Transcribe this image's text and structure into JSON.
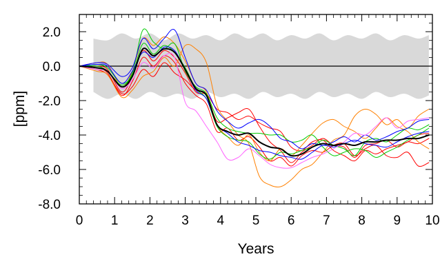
{
  "chart_data": {
    "type": "line",
    "title": "",
    "xlabel": "Years",
    "ylabel": "[ppm]",
    "xlim": [
      0,
      10
    ],
    "ylim": [
      -8.0,
      3.0
    ],
    "xticks": [
      0,
      1,
      2,
      3,
      4,
      5,
      6,
      7,
      8,
      9,
      10
    ],
    "xtick_labels": [
      "0",
      "1",
      "2",
      "3",
      "4",
      "5",
      "6",
      "7",
      "8",
      "9",
      "10"
    ],
    "yticks": [
      2.0,
      0.0,
      -2.0,
      -4.0,
      -6.0,
      -8.0
    ],
    "ytick_labels": [
      "2.0",
      "0.0",
      "-2.0",
      "-4.0",
      "-6.0",
      "-8.0"
    ],
    "reference_line": 0.0,
    "band": {
      "color": "#d9d9d9",
      "x": [
        0.4,
        0.8,
        1.2,
        1.6,
        2.0,
        2.4,
        2.8,
        3.2,
        3.6,
        4.0,
        4.4,
        4.8,
        5.2,
        5.6,
        6.0,
        6.4,
        6.8,
        7.2,
        7.6,
        8.0,
        8.4,
        8.8,
        9.2,
        9.6,
        9.9
      ],
      "upper": [
        1.6,
        1.5,
        1.9,
        1.6,
        1.9,
        1.5,
        1.9,
        1.6,
        1.8,
        1.5,
        1.9,
        1.6,
        1.9,
        1.5,
        1.8,
        1.6,
        1.9,
        1.5,
        1.8,
        1.6,
        1.9,
        1.5,
        1.8,
        1.6,
        1.8
      ],
      "lower": [
        -1.5,
        -1.9,
        -1.6,
        -1.9,
        -1.5,
        -1.8,
        -1.6,
        -1.9,
        -1.5,
        -1.8,
        -1.6,
        -1.9,
        -1.5,
        -1.8,
        -1.6,
        -1.9,
        -1.5,
        -1.8,
        -1.6,
        -1.9,
        -1.5,
        -1.8,
        -1.6,
        -1.9,
        -1.7
      ]
    },
    "x": [
      0.0,
      0.5,
      0.8,
      1.2,
      1.5,
      1.8,
      2.1,
      2.4,
      2.7,
      3.0,
      3.3,
      3.6,
      3.9,
      4.2,
      4.5,
      4.8,
      5.1,
      5.4,
      5.7,
      6.0,
      6.3,
      6.6,
      6.9,
      7.2,
      7.5,
      7.8,
      8.1,
      8.4,
      8.7,
      9.0,
      9.3,
      9.6,
      9.9
    ],
    "series": [
      {
        "color": "#ff0000",
        "width": 1,
        "values": [
          0.0,
          -0.1,
          -0.4,
          -1.7,
          -0.9,
          0.5,
          0.0,
          0.6,
          0.2,
          -1.0,
          -1.7,
          -2.2,
          -3.8,
          -3.6,
          -4.3,
          -4.1,
          -4.7,
          -5.5,
          -5.3,
          -5.8,
          -5.2,
          -4.9,
          -5.0,
          -4.6,
          -4.5,
          -5.2,
          -4.8,
          -4.6,
          -5.2,
          -5.3,
          -5.0,
          -5.8,
          -5.6
        ]
      },
      {
        "color": "#ff0000",
        "width": 1,
        "values": [
          0.0,
          0.0,
          -0.2,
          -1.5,
          -0.6,
          0.9,
          0.3,
          0.9,
          0.5,
          -0.4,
          -1.5,
          -1.7,
          -3.2,
          -3.0,
          -2.7,
          -2.5,
          -3.5,
          -4.4,
          -4.9,
          -5.6,
          -5.0,
          -4.6,
          -4.2,
          -4.6,
          -4.7,
          -5.3,
          -4.6,
          -4.5,
          -4.3,
          -4.7,
          -4.4,
          -4.5,
          -4.2
        ]
      },
      {
        "color": "#ff0000",
        "width": 1,
        "values": [
          0.0,
          -0.2,
          -0.5,
          -1.6,
          -1.2,
          -0.2,
          -0.6,
          0.2,
          -0.4,
          -0.8,
          -1.4,
          -1.6,
          -2.5,
          -2.7,
          -3.1,
          -2.9,
          -3.3,
          -3.6,
          -3.8,
          -4.7,
          -4.9,
          -4.4,
          -4.3,
          -4.9,
          -5.2,
          -5.5,
          -4.9,
          -5.1,
          -4.8,
          -4.6,
          -4.4,
          -4.0,
          -3.9
        ]
      },
      {
        "color": "#ff8000",
        "width": 1,
        "values": [
          0.0,
          -0.3,
          -0.5,
          -1.8,
          -1.4,
          -0.6,
          -0.3,
          0.5,
          0.0,
          1.2,
          1.0,
          0.2,
          -2.3,
          -3.2,
          -4.0,
          -4.5,
          -6.4,
          -6.9,
          -7.0,
          -6.6,
          -6.0,
          -5.7,
          -5.0,
          -4.3,
          -4.0,
          -2.9,
          -2.5,
          -2.8,
          -3.4,
          -3.1,
          -3.6,
          -2.9,
          -2.5
        ]
      },
      {
        "color": "#ff8000",
        "width": 1,
        "values": [
          0.0,
          0.2,
          0.1,
          -1.2,
          -0.3,
          1.6,
          1.2,
          1.7,
          1.3,
          0.3,
          -1.0,
          -1.5,
          -3.4,
          -4.1,
          -4.6,
          -4.0,
          -5.0,
          -5.5,
          -4.8,
          -5.2,
          -4.6,
          -3.9,
          -3.3,
          -3.1,
          -3.5,
          -3.8,
          -4.2,
          -3.6,
          -3.0,
          -3.5,
          -3.8,
          -4.4,
          -4.8
        ]
      },
      {
        "color": "#00cc00",
        "width": 1,
        "values": [
          0.0,
          0.1,
          -0.1,
          -1.0,
          -0.4,
          2.1,
          1.4,
          1.0,
          1.3,
          -0.3,
          -1.2,
          -1.6,
          -3.0,
          -3.6,
          -3.8,
          -3.9,
          -3.9,
          -4.0,
          -4.0,
          -4.4,
          -4.3,
          -4.0,
          -4.7,
          -5.2,
          -5.0,
          -4.8,
          -4.9,
          -5.3,
          -5.0,
          -4.7,
          -4.3,
          -4.0,
          -3.6
        ]
      },
      {
        "color": "#00cc00",
        "width": 1,
        "values": [
          0.0,
          0.0,
          -0.3,
          -1.1,
          -0.5,
          1.3,
          0.7,
          1.2,
          0.8,
          -0.1,
          -1.3,
          -1.9,
          -3.5,
          -4.1,
          -4.3,
          -4.4,
          -5.1,
          -5.4,
          -5.0,
          -5.1,
          -4.9,
          -4.7,
          -4.3,
          -4.6,
          -4.8,
          -5.2,
          -4.4,
          -4.2,
          -4.4,
          -4.0,
          -3.6,
          -3.7,
          -3.4
        ]
      },
      {
        "color": "#0000ff",
        "width": 1,
        "values": [
          0.0,
          0.2,
          0.1,
          -0.6,
          -0.1,
          1.6,
          1.0,
          1.6,
          2.1,
          0.5,
          -1.0,
          -1.4,
          -2.6,
          -3.2,
          -3.6,
          -3.3,
          -3.1,
          -3.5,
          -4.2,
          -4.4,
          -4.8,
          -4.5,
          -4.6,
          -4.4,
          -4.1,
          -4.4,
          -4.0,
          -4.3,
          -4.1,
          -3.8,
          -3.6,
          -3.2,
          -3.1
        ]
      },
      {
        "color": "#0000ff",
        "width": 1,
        "values": [
          0.0,
          0.1,
          0.0,
          -1.0,
          -0.3,
          0.8,
          0.5,
          1.1,
          0.9,
          -0.2,
          -1.4,
          -1.9,
          -3.4,
          -3.9,
          -4.4,
          -4.6,
          -4.9,
          -5.0,
          -5.2,
          -5.3,
          -5.4,
          -5.0,
          -4.6,
          -4.7,
          -4.5,
          -4.3,
          -4.5,
          -4.6,
          -4.7,
          -4.4,
          -4.1,
          -3.9,
          -3.8
        ]
      },
      {
        "color": "#ff66ff",
        "width": 1,
        "values": [
          0.0,
          -0.2,
          -0.3,
          -1.3,
          -0.8,
          0.2,
          -0.1,
          0.6,
          0.5,
          -2.1,
          -2.6,
          -3.5,
          -4.4,
          -5.4,
          -5.3,
          -4.8,
          -5.2,
          -5.7,
          -5.9,
          -5.9,
          -5.6,
          -5.3,
          -5.1,
          -4.8,
          -4.4,
          -3.9,
          -4.0,
          -3.5,
          -3.0,
          -3.6,
          -3.2,
          -3.1,
          -3.0
        ]
      },
      {
        "color": "#000000",
        "width": 2,
        "values": [
          0.0,
          -0.1,
          -0.3,
          -1.2,
          -0.6,
          1.0,
          0.6,
          1.0,
          0.8,
          -0.2,
          -1.3,
          -1.7,
          -3.4,
          -3.8,
          -4.0,
          -3.9,
          -4.4,
          -4.7,
          -4.8,
          -5.2,
          -5.1,
          -4.7,
          -4.5,
          -4.6,
          -4.5,
          -4.6,
          -4.4,
          -4.4,
          -4.3,
          -4.3,
          -4.2,
          -4.2,
          -4.0
        ]
      }
    ]
  }
}
